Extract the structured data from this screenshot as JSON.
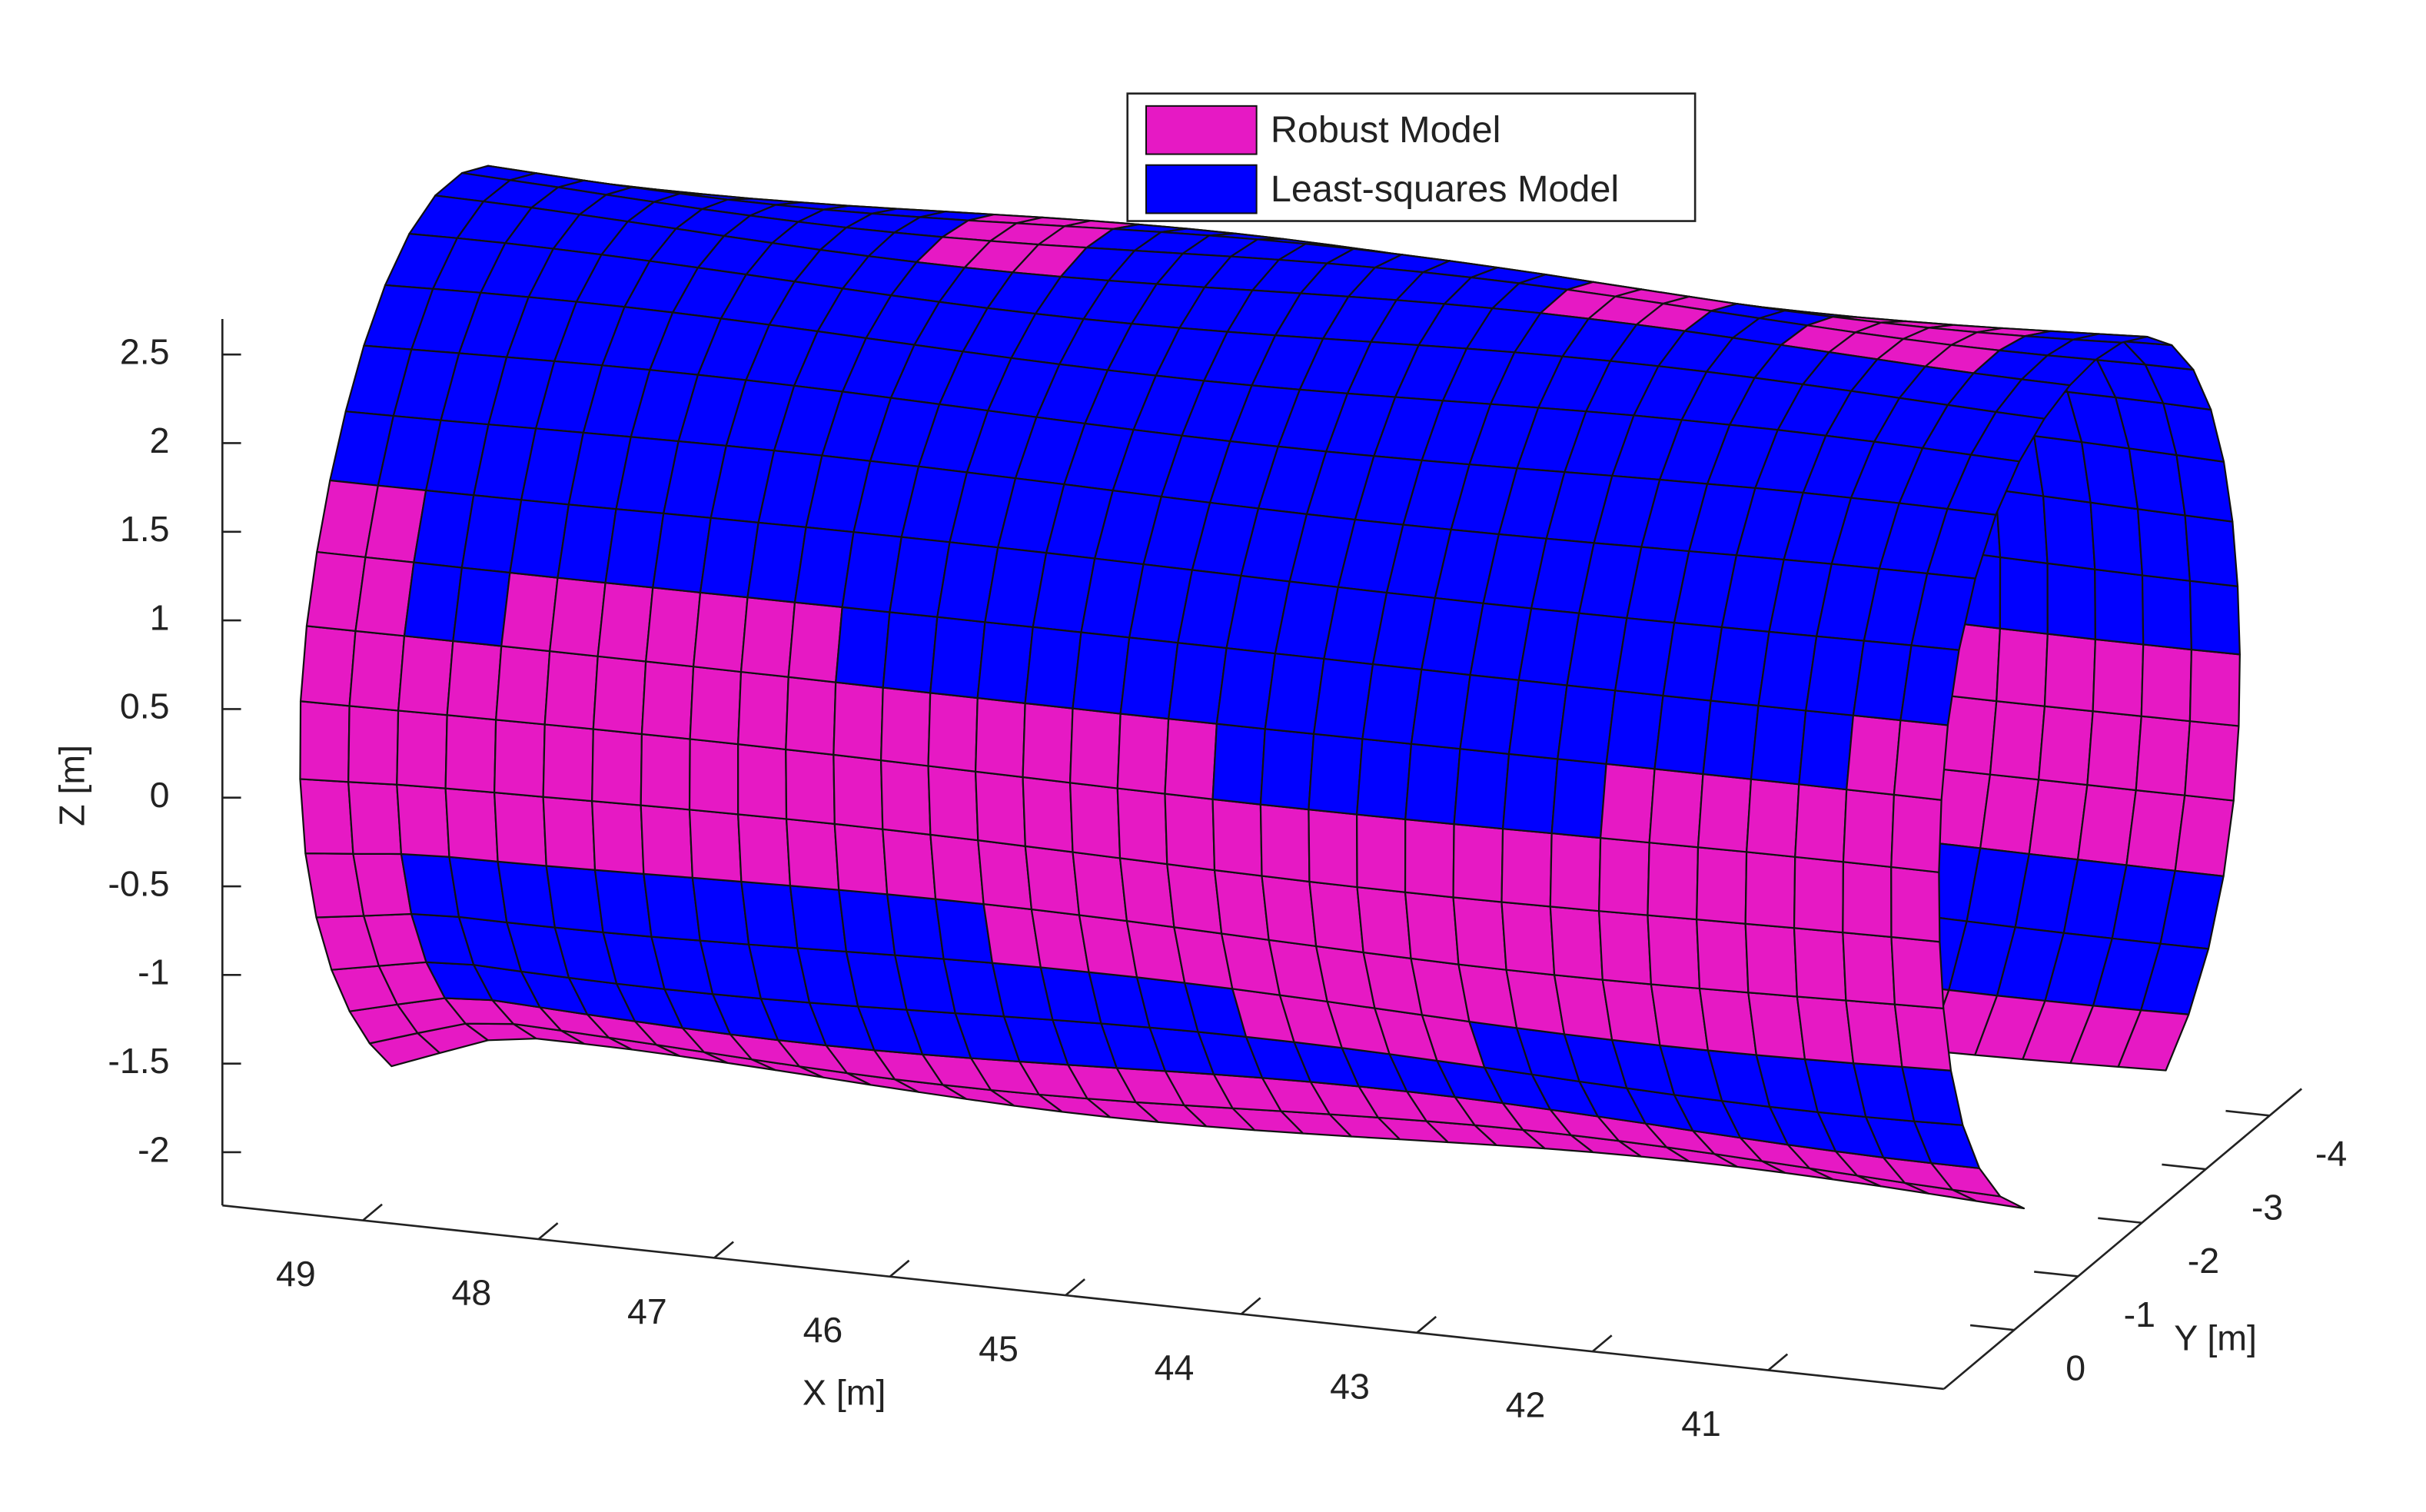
{
  "chart_data": {
    "type": "surface3d",
    "series": [
      {
        "name": "Robust Model",
        "color": "#e619c4"
      },
      {
        "name": "Least-squares Model",
        "color": "#0000ff"
      }
    ],
    "legend": "upper center",
    "xlabel": "X [m]",
    "ylabel": "Y [m]",
    "zlabel": "Z [m]",
    "xlim": [
      49.8,
      40
    ],
    "ylim": [
      1.1,
      -4.5
    ],
    "zlim": [
      -2.3,
      2.7
    ],
    "xticks": [
      49,
      48,
      47,
      46,
      45,
      44,
      43,
      42,
      41
    ],
    "yticks": [
      0,
      -1,
      -2,
      -3,
      -4
    ],
    "zticks": [
      -2,
      -1.5,
      -1,
      -0.5,
      0,
      0.5,
      1,
      1.5,
      2,
      2.5
    ]
  }
}
